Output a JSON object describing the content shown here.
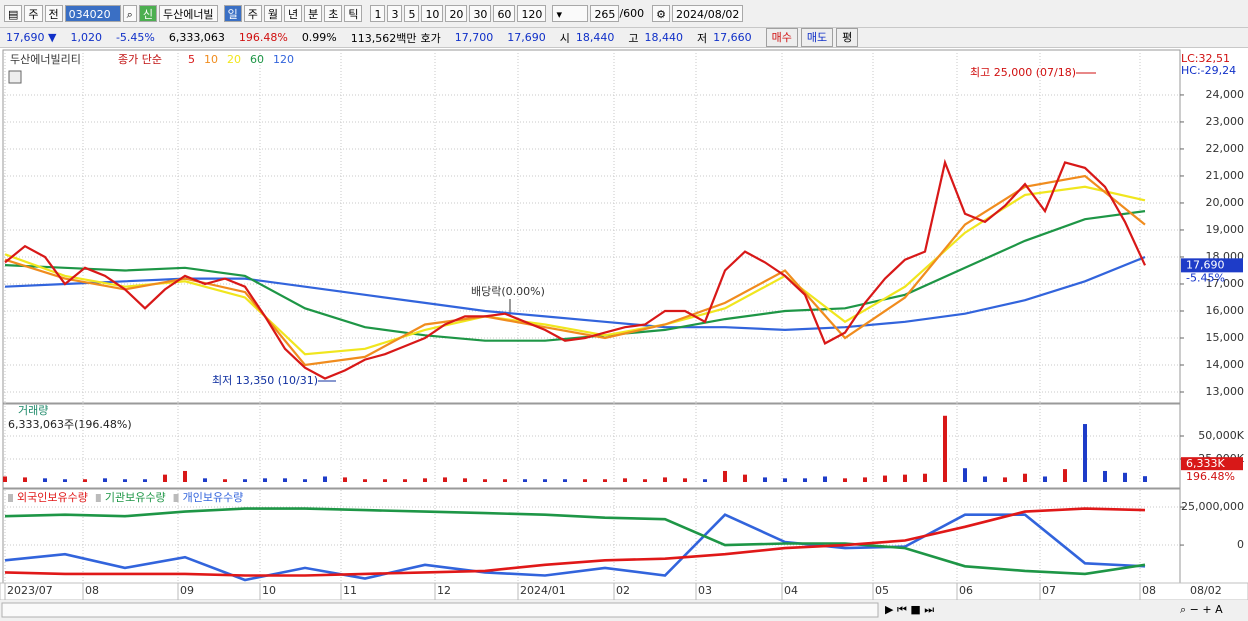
{
  "toolbar": {
    "market": "주",
    "range": "전",
    "code": "034020",
    "name": "두산에너빌",
    "periods": [
      "일",
      "주",
      "월",
      "년",
      "분",
      "초",
      "틱"
    ],
    "intervals": [
      "1",
      "3",
      "5",
      "10",
      "20",
      "30",
      "60",
      "120"
    ],
    "count": "265",
    "max": "/600",
    "date": "2024/08/02"
  },
  "info": {
    "price": "17,690 ▼",
    "change": "1,020",
    "rate": "-5.45%",
    "volume": "6,333,063",
    "volume_ratio": "196.48%",
    "turnover": "0.99%",
    "amount": "113,562백만",
    "quote_label": "호가",
    "ask": "17,700",
    "bid": "17,690",
    "open_label": "시",
    "open": "18,440",
    "high_label": "고",
    "high": "18,440",
    "low_label": "저",
    "low": "17,660",
    "buy": "매수",
    "sell": "매도",
    "avg": "평"
  },
  "price_chart": {
    "type": "line",
    "stock": "두산에너빌리티",
    "indicator": "종가 단순",
    "ylim": [
      12630,
      25590
    ],
    "yticks": [
      {
        "value": 13000,
        "label": "13,000"
      },
      {
        "value": 14000,
        "label": "14,000"
      },
      {
        "value": 15000,
        "label": "15,000"
      },
      {
        "value": 16000,
        "label": "16,000"
      },
      {
        "value": 17000,
        "label": "17,000"
      },
      {
        "value": 18000,
        "label": "18,000"
      },
      {
        "value": 19000,
        "label": "19,000"
      },
      {
        "value": 20000,
        "label": "20,000"
      },
      {
        "value": 21000,
        "label": "21,000"
      },
      {
        "value": 22000,
        "label": "22,000"
      },
      {
        "value": 23000,
        "label": "23,000"
      },
      {
        "value": 24000,
        "label": "24,000"
      }
    ],
    "series": [
      {
        "name": "5",
        "color": "#d81818",
        "values": [
          17800,
          18400,
          18000,
          17000,
          17600,
          17300,
          16800,
          16100,
          16800,
          17300,
          17000,
          17200,
          16900,
          15800,
          14600,
          13900,
          13500,
          13800,
          14200,
          14400,
          14700,
          15000,
          15500,
          15800,
          15800,
          15900,
          15600,
          15300,
          14900,
          15000,
          15200,
          15400,
          15500,
          16000,
          16000,
          15600,
          17500,
          18200,
          17800,
          17300,
          16600,
          14800,
          15200,
          16300,
          17200,
          17900,
          18200,
          21500,
          19600,
          19300,
          19900,
          20700,
          19700,
          21500,
          21300,
          20600,
          19300,
          17690
        ]
      },
      {
        "name": "10",
        "color": "#f08c1e",
        "values": [
          17900,
          17200,
          16800,
          17200,
          16700,
          14000,
          14300,
          15500,
          15800,
          15400,
          15000,
          15500,
          16300,
          17500,
          15000,
          16500,
          19200,
          20600,
          21000,
          19200
        ]
      },
      {
        "name": "20",
        "color": "#f0e61e",
        "values": [
          18100,
          17300,
          16900,
          17100,
          16500,
          14400,
          14600,
          15300,
          15800,
          15500,
          15100,
          15500,
          16100,
          17300,
          15600,
          16900,
          18900,
          20300,
          20600,
          20100
        ]
      },
      {
        "name": "60",
        "color": "#1e9646",
        "values": [
          17700,
          17600,
          17500,
          17600,
          17300,
          16100,
          15400,
          15100,
          14900,
          14900,
          15100,
          15300,
          15700,
          16000,
          16100,
          16600,
          17600,
          18600,
          19400,
          19700
        ]
      },
      {
        "name": "120",
        "color": "#3264dc",
        "values": [
          16900,
          17000,
          17100,
          17200,
          17200,
          16900,
          16600,
          16300,
          16000,
          15800,
          15600,
          15400,
          15400,
          15300,
          15400,
          15600,
          15900,
          16400,
          17100,
          18000
        ]
      }
    ],
    "max_label": "최고 25,000 (07/18)",
    "min_label": "최저 13,350 (10/31)",
    "dividend_label": "배당락(0.00%)",
    "lc": "LC:32,51",
    "hc": "HC:-29,24",
    "last_label": "17,690",
    "last_rate": "-5.45%"
  },
  "volume_chart": {
    "type": "bar",
    "title": "거래량",
    "summary": "6,333,063주(196.48%)",
    "ylim": [
      0,
      83700
    ],
    "yticks": [
      {
        "value": 25000,
        "label": "25,000K"
      },
      {
        "value": 50000,
        "label": "50,000K"
      }
    ],
    "values": [
      6000,
      5000,
      4000,
      3000,
      3000,
      4000,
      3000,
      3000,
      8000,
      12000,
      4000,
      3000,
      3000,
      4000,
      4000,
      3000,
      6000,
      5000,
      3000,
      3000,
      3000,
      4000,
      5000,
      4000,
      3000,
      3000,
      3000,
      3000,
      3000,
      3000,
      3000,
      4000,
      3000,
      5000,
      4000,
      3000,
      12000,
      8000,
      5000,
      4000,
      4000,
      6000,
      4000,
      5000,
      7000,
      8000,
      9000,
      72000,
      15000,
      6000,
      5000,
      9000,
      6000,
      14000,
      63000,
      12000,
      10000,
      6333
    ],
    "up_color": "#d81818",
    "down_color": "#1e3cc8",
    "last_label": "6,333K",
    "last_ratio": "196.48%"
  },
  "holdings_chart": {
    "type": "line",
    "ylim": [
      -24300000,
      34900000
    ],
    "yticks": [
      {
        "value": 25000000,
        "label": "25,000,000"
      },
      0
    ],
    "series": [
      {
        "name": "외국인보유수량",
        "color": "#e01818",
        "values": [
          -18000000,
          -19000000,
          -19000000,
          -19000000,
          -20000000,
          -20000000,
          -19000000,
          -18000000,
          -17000000,
          -13000000,
          -10000000,
          -9000000,
          -6000000,
          -2000000,
          0,
          3000000,
          12000000,
          22000000,
          24000000,
          23000000
        ]
      },
      {
        "name": "기관보유수량",
        "color": "#1e9646",
        "values": [
          19000000,
          20000000,
          19000000,
          22000000,
          24000000,
          24000000,
          23000000,
          22000000,
          21000000,
          20000000,
          18000000,
          17000000,
          0,
          1000000,
          1000000,
          -2000000,
          -14000000,
          -17000000,
          -19000000,
          -13000000
        ]
      },
      {
        "name": "개인보유수량",
        "color": "#3264dc",
        "values": [
          -10000000,
          -6000000,
          -15000000,
          -8000000,
          -23000000,
          -15000000,
          -22000000,
          -13000000,
          -18000000,
          -20000000,
          -15000000,
          -20000000,
          20000000,
          2000000,
          -2000000,
          -1000000,
          20000000,
          20000000,
          -12000000,
          -14000000
        ]
      }
    ]
  },
  "months": [
    "2023/07",
    "08",
    "09",
    "10",
    "11",
    "12",
    "2024/01",
    "02",
    "03",
    "04",
    "05",
    "06",
    "07",
    "08"
  ],
  "end_date": "08/02"
}
